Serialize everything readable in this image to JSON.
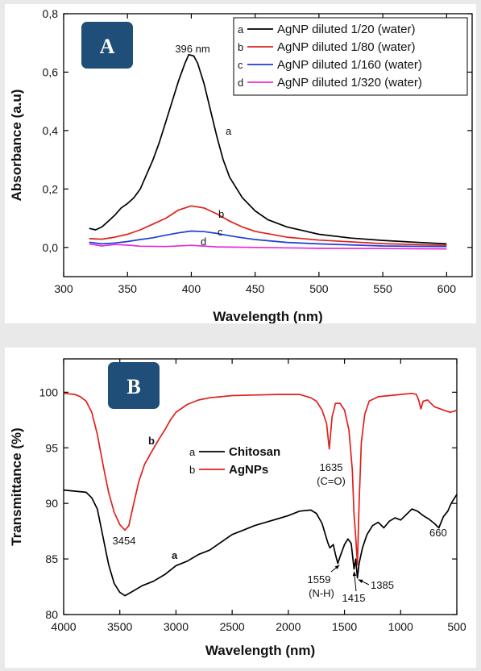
{
  "colors": {
    "badge": "#1f4e79",
    "black": "#000000",
    "red": "#e0201b",
    "blue": "#1a3fd6",
    "magenta": "#e62ad8"
  },
  "chart_data": [
    {
      "panel_label": "A",
      "type": "line",
      "xlabel": "Wavelength (nm)",
      "ylabel": "Absorbance (a.u)",
      "xlim": [
        300,
        620
      ],
      "ylim": [
        -0.1,
        0.8
      ],
      "x_ticks": [
        "300",
        "350",
        "400",
        "450",
        "500",
        "550",
        "600"
      ],
      "y_ticks": [
        "0,0",
        "0,2",
        "0,4",
        "0,6",
        "0,8"
      ],
      "annotations": [
        {
          "text": "396 nm"
        },
        {
          "text": "a"
        },
        {
          "text": "b"
        },
        {
          "text": "c"
        },
        {
          "text": "d"
        }
      ],
      "legend": {
        "position": "top-right",
        "entries": [
          {
            "letter": "a",
            "label": "AgNP diluted 1/20 (water)",
            "color": "#000000"
          },
          {
            "letter": "b",
            "label": "AgNP diluted 1/80 (water)",
            "color": "#e0201b"
          },
          {
            "letter": "c",
            "label": "AgNP diluted 1/160 (water)",
            "color": "#1a3fd6"
          },
          {
            "letter": "d",
            "label": "AgNP diluted 1/320 (water)",
            "color": "#e62ad8"
          }
        ]
      },
      "series": [
        {
          "name": "AgNP diluted 1/20 (water)",
          "color": "#000000",
          "points": [
            [
              320,
              0.065
            ],
            [
              325,
              0.06
            ],
            [
              330,
              0.07
            ],
            [
              335,
              0.09
            ],
            [
              340,
              0.11
            ],
            [
              345,
              0.135
            ],
            [
              350,
              0.15
            ],
            [
              355,
              0.17
            ],
            [
              360,
              0.2
            ],
            [
              365,
              0.25
            ],
            [
              370,
              0.3
            ],
            [
              375,
              0.36
            ],
            [
              380,
              0.43
            ],
            [
              385,
              0.5
            ],
            [
              390,
              0.57
            ],
            [
              395,
              0.63
            ],
            [
              398,
              0.66
            ],
            [
              402,
              0.655
            ],
            [
              405,
              0.63
            ],
            [
              410,
              0.56
            ],
            [
              415,
              0.47
            ],
            [
              420,
              0.38
            ],
            [
              425,
              0.3
            ],
            [
              430,
              0.24
            ],
            [
              440,
              0.17
            ],
            [
              450,
              0.125
            ],
            [
              460,
              0.095
            ],
            [
              475,
              0.07
            ],
            [
              500,
              0.045
            ],
            [
              525,
              0.032
            ],
            [
              550,
              0.024
            ],
            [
              575,
              0.018
            ],
            [
              600,
              0.012
            ]
          ]
        },
        {
          "name": "AgNP diluted 1/80 (water)",
          "color": "#e0201b",
          "points": [
            [
              320,
              0.03
            ],
            [
              330,
              0.028
            ],
            [
              340,
              0.035
            ],
            [
              350,
              0.045
            ],
            [
              360,
              0.06
            ],
            [
              370,
              0.08
            ],
            [
              380,
              0.1
            ],
            [
              390,
              0.128
            ],
            [
              400,
              0.142
            ],
            [
              410,
              0.135
            ],
            [
              420,
              0.115
            ],
            [
              430,
              0.09
            ],
            [
              440,
              0.07
            ],
            [
              450,
              0.055
            ],
            [
              475,
              0.035
            ],
            [
              500,
              0.025
            ],
            [
              550,
              0.013
            ],
            [
              600,
              0.007
            ]
          ]
        },
        {
          "name": "AgNP diluted 1/160 (water)",
          "color": "#1a3fd6",
          "points": [
            [
              320,
              0.018
            ],
            [
              330,
              0.012
            ],
            [
              340,
              0.015
            ],
            [
              350,
              0.02
            ],
            [
              360,
              0.027
            ],
            [
              370,
              0.033
            ],
            [
              380,
              0.042
            ],
            [
              390,
              0.05
            ],
            [
              400,
              0.056
            ],
            [
              410,
              0.054
            ],
            [
              420,
              0.048
            ],
            [
              430,
              0.04
            ],
            [
              440,
              0.033
            ],
            [
              450,
              0.027
            ],
            [
              475,
              0.017
            ],
            [
              500,
              0.012
            ],
            [
              550,
              0.005
            ],
            [
              600,
              0.003
            ]
          ]
        },
        {
          "name": "AgNP diluted 1/320 (water)",
          "color": "#e62ad8",
          "points": [
            [
              320,
              0.012
            ],
            [
              330,
              0.005
            ],
            [
              340,
              0.01
            ],
            [
              350,
              0.008
            ],
            [
              360,
              0.004
            ],
            [
              380,
              0.003
            ],
            [
              400,
              0.007
            ],
            [
              420,
              0.002
            ],
            [
              450,
              0.0
            ],
            [
              500,
              -0.003
            ],
            [
              550,
              -0.004
            ],
            [
              600,
              -0.005
            ]
          ]
        }
      ]
    },
    {
      "panel_label": "B",
      "type": "line",
      "xlabel": "Wavelength (nm)",
      "ylabel": "Transmittance (%)",
      "xlim": [
        4000,
        500
      ],
      "ylim": [
        80,
        103
      ],
      "x_ticks": [
        "4000",
        "3500",
        "3000",
        "2500",
        "2000",
        "1500",
        "1000",
        "500"
      ],
      "y_ticks": [
        "80",
        "85",
        "90",
        "95",
        "100"
      ],
      "annotations": [
        {
          "text": "3454"
        },
        {
          "text": "1635"
        },
        {
          "text": "(C=O)"
        },
        {
          "text": "1559"
        },
        {
          "text": "(N-H)"
        },
        {
          "text": "1415"
        },
        {
          "text": "1385"
        },
        {
          "text": "660"
        },
        {
          "text": "a"
        },
        {
          "text": "b"
        }
      ],
      "legend": {
        "position": "center",
        "entries": [
          {
            "letter": "a",
            "label": "Chitosan",
            "color": "#000000"
          },
          {
            "letter": "b",
            "label": "AgNPs",
            "color": "#e0201b"
          }
        ]
      },
      "series": [
        {
          "name": "Chitosan",
          "color": "#000000",
          "points": [
            [
              4000,
              91.2
            ],
            [
              3900,
              91.1
            ],
            [
              3800,
              91.0
            ],
            [
              3750,
              90.5
            ],
            [
              3700,
              89.5
            ],
            [
              3650,
              87.0
            ],
            [
              3600,
              84.5
            ],
            [
              3550,
              82.8
            ],
            [
              3500,
              82.0
            ],
            [
              3454,
              81.7
            ],
            [
              3400,
              82.0
            ],
            [
              3300,
              82.6
            ],
            [
              3200,
              83.0
            ],
            [
              3100,
              83.6
            ],
            [
              3000,
              84.4
            ],
            [
              2900,
              84.8
            ],
            [
              2800,
              85.4
            ],
            [
              2700,
              85.8
            ],
            [
              2600,
              86.5
            ],
            [
              2500,
              87.2
            ],
            [
              2400,
              87.6
            ],
            [
              2300,
              88.0
            ],
            [
              2200,
              88.3
            ],
            [
              2100,
              88.6
            ],
            [
              2000,
              88.9
            ],
            [
              1900,
              89.3
            ],
            [
              1800,
              89.4
            ],
            [
              1750,
              89.1
            ],
            [
              1700,
              88.2
            ],
            [
              1650,
              86.5
            ],
            [
              1630,
              86.0
            ],
            [
              1600,
              86.3
            ],
            [
              1580,
              85.4
            ],
            [
              1559,
              84.6
            ],
            [
              1540,
              85.2
            ],
            [
              1500,
              86.3
            ],
            [
              1470,
              86.8
            ],
            [
              1440,
              86.4
            ],
            [
              1415,
              84.1
            ],
            [
              1400,
              85.0
            ],
            [
              1385,
              83.3
            ],
            [
              1370,
              84.6
            ],
            [
              1340,
              86.0
            ],
            [
              1300,
              87.2
            ],
            [
              1250,
              88.0
            ],
            [
              1200,
              88.3
            ],
            [
              1150,
              87.8
            ],
            [
              1100,
              88.4
            ],
            [
              1050,
              88.7
            ],
            [
              1000,
              88.5
            ],
            [
              950,
              89.0
            ],
            [
              900,
              89.5
            ],
            [
              850,
              89.3
            ],
            [
              800,
              88.9
            ],
            [
              750,
              88.6
            ],
            [
              700,
              88.2
            ],
            [
              660,
              87.8
            ],
            [
              620,
              88.8
            ],
            [
              580,
              89.3
            ],
            [
              550,
              90.0
            ],
            [
              500,
              90.8
            ]
          ]
        },
        {
          "name": "AgNPs",
          "color": "#e0201b",
          "points": [
            [
              4000,
              99.9
            ],
            [
              3900,
              99.8
            ],
            [
              3850,
              99.6
            ],
            [
              3800,
              99.2
            ],
            [
              3750,
              98.2
            ],
            [
              3700,
              96.2
            ],
            [
              3650,
              93.5
            ],
            [
              3600,
              91.0
            ],
            [
              3550,
              89.2
            ],
            [
              3500,
              88.1
            ],
            [
              3454,
              87.6
            ],
            [
              3420,
              88.0
            ],
            [
              3380,
              89.8
            ],
            [
              3330,
              92.0
            ],
            [
              3280,
              93.5
            ],
            [
              3220,
              94.6
            ],
            [
              3150,
              95.8
            ],
            [
              3100,
              96.6
            ],
            [
              3050,
              97.5
            ],
            [
              3000,
              98.2
            ],
            [
              2900,
              98.9
            ],
            [
              2800,
              99.3
            ],
            [
              2700,
              99.5
            ],
            [
              2600,
              99.6
            ],
            [
              2500,
              99.7
            ],
            [
              2300,
              99.75
            ],
            [
              2100,
              99.8
            ],
            [
              1900,
              99.8
            ],
            [
              1800,
              99.5
            ],
            [
              1750,
              99.2
            ],
            [
              1700,
              98.4
            ],
            [
              1660,
              97.2
            ],
            [
              1635,
              94.9
            ],
            [
              1610,
              97.8
            ],
            [
              1580,
              99.0
            ],
            [
              1540,
              99.0
            ],
            [
              1500,
              98.4
            ],
            [
              1460,
              96.6
            ],
            [
              1430,
              93.0
            ],
            [
              1415,
              89.0
            ],
            [
              1400,
              87.0
            ],
            [
              1385,
              84.5
            ],
            [
              1370,
              90.0
            ],
            [
              1350,
              95.5
            ],
            [
              1320,
              98.0
            ],
            [
              1280,
              99.2
            ],
            [
              1200,
              99.6
            ],
            [
              1100,
              99.7
            ],
            [
              1000,
              99.8
            ],
            [
              900,
              99.9
            ],
            [
              860,
              99.8
            ],
            [
              840,
              99.3
            ],
            [
              820,
              98.5
            ],
            [
              800,
              99.2
            ],
            [
              760,
              99.3
            ],
            [
              700,
              98.7
            ],
            [
              620,
              98.4
            ],
            [
              560,
              98.2
            ],
            [
              520,
              98.3
            ],
            [
              500,
              98.4
            ]
          ]
        }
      ]
    }
  ]
}
